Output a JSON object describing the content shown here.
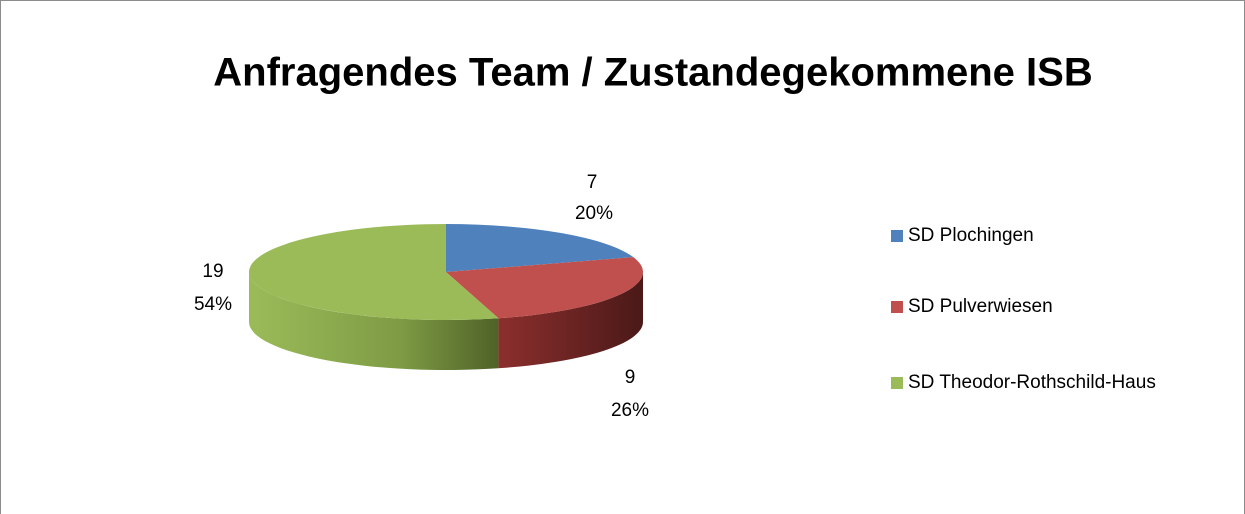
{
  "chart_data": {
    "type": "pie3d",
    "title": "Anfragendes Team / Zustandegekommene ISB",
    "categories": [
      "SD Plochingen",
      "SD Pulverwiesen",
      "SD Theodor-Rothschild-Haus"
    ],
    "values": [
      7,
      9,
      19
    ],
    "percentages": [
      20,
      26,
      54
    ],
    "percentage_labels": [
      "20%",
      "26%",
      "54%"
    ],
    "colors": [
      "#4f81bd",
      "#c0504d",
      "#9bbb59"
    ],
    "legend": "right"
  }
}
